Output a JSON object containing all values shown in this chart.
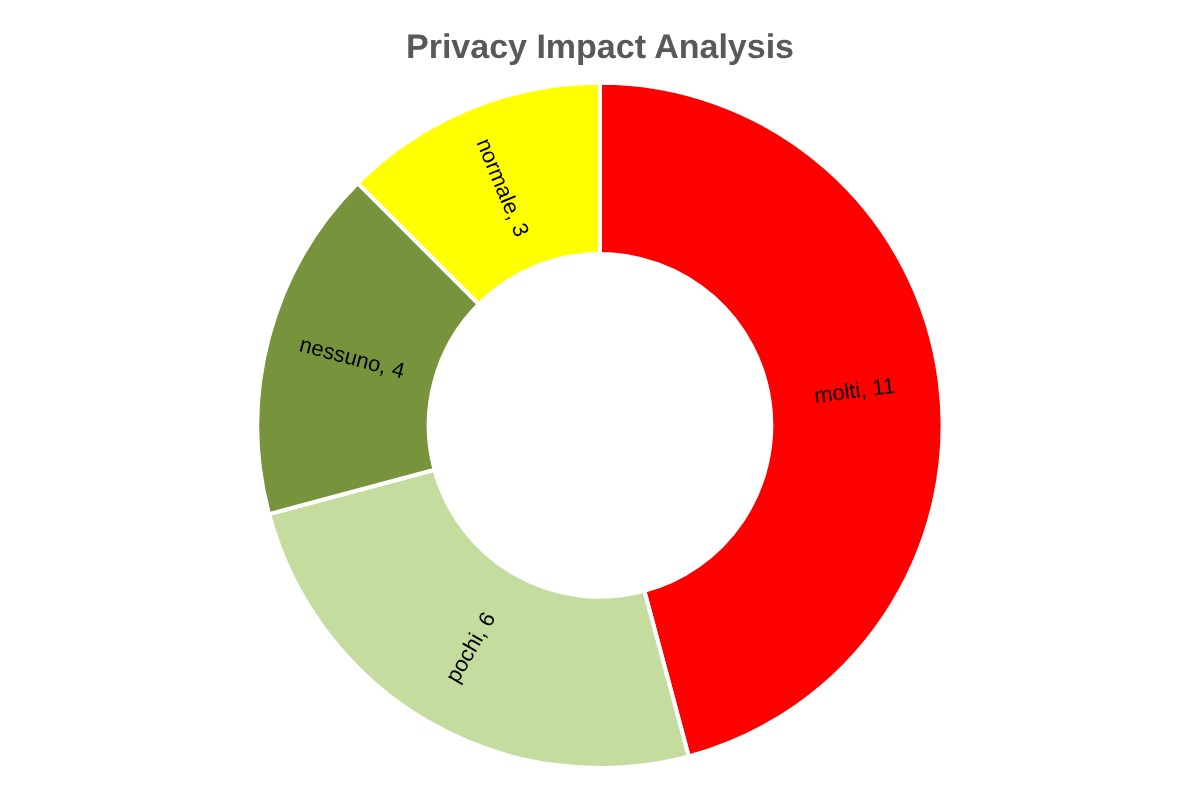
{
  "chart_data": {
    "type": "donut",
    "title": "Privacy Impact Analysis",
    "categories": [
      "molti, 11",
      "pochi, 6",
      "nessuno, 4",
      "normale, 3"
    ],
    "values": [
      11,
      6,
      4,
      3
    ],
    "colors": [
      "#ff0000",
      "#c4dd9f",
      "#77933c",
      "#ffff00"
    ],
    "legend": false
  }
}
